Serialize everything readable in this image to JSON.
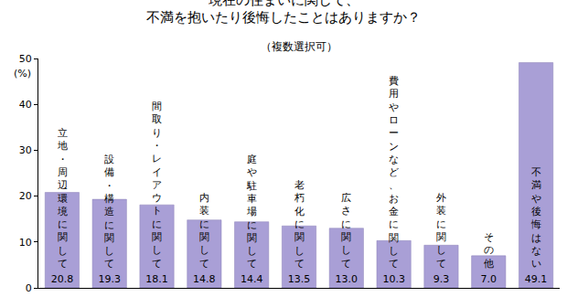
{
  "chart_data": {
    "type": "bar",
    "title": "現在の住まいに関して、\n不満を抱いたり後悔したことはありますか？",
    "subtitle": "（複数選択可）",
    "ylabel": "(%)",
    "categories": [
      "立地・周辺環境に関して",
      "設備・構造に関して",
      "間取り・レイアウトに関して",
      "内装に関して",
      "庭や駐車場に関して",
      "老朽化に関して",
      "広さに関して",
      "費用やローンなど、お金に関して",
      "外装に関して",
      "その他",
      "不満や後悔はない"
    ],
    "values": [
      20.8,
      19.3,
      18.1,
      14.8,
      14.4,
      13.5,
      13.0,
      10.3,
      9.3,
      7.0,
      49.1
    ],
    "value_labels": [
      "20.8",
      "19.3",
      "18.1",
      "14.8",
      "14.4",
      "13.5",
      "13.0",
      "10.3",
      "9.3",
      "7.0",
      "49.1"
    ],
    "color": "#a99fd6",
    "ylim": [
      0,
      50
    ],
    "yticks": [
      0,
      10,
      20,
      30,
      40,
      50
    ],
    "grid": false,
    "data_labels": true,
    "tick_labels": "y"
  }
}
